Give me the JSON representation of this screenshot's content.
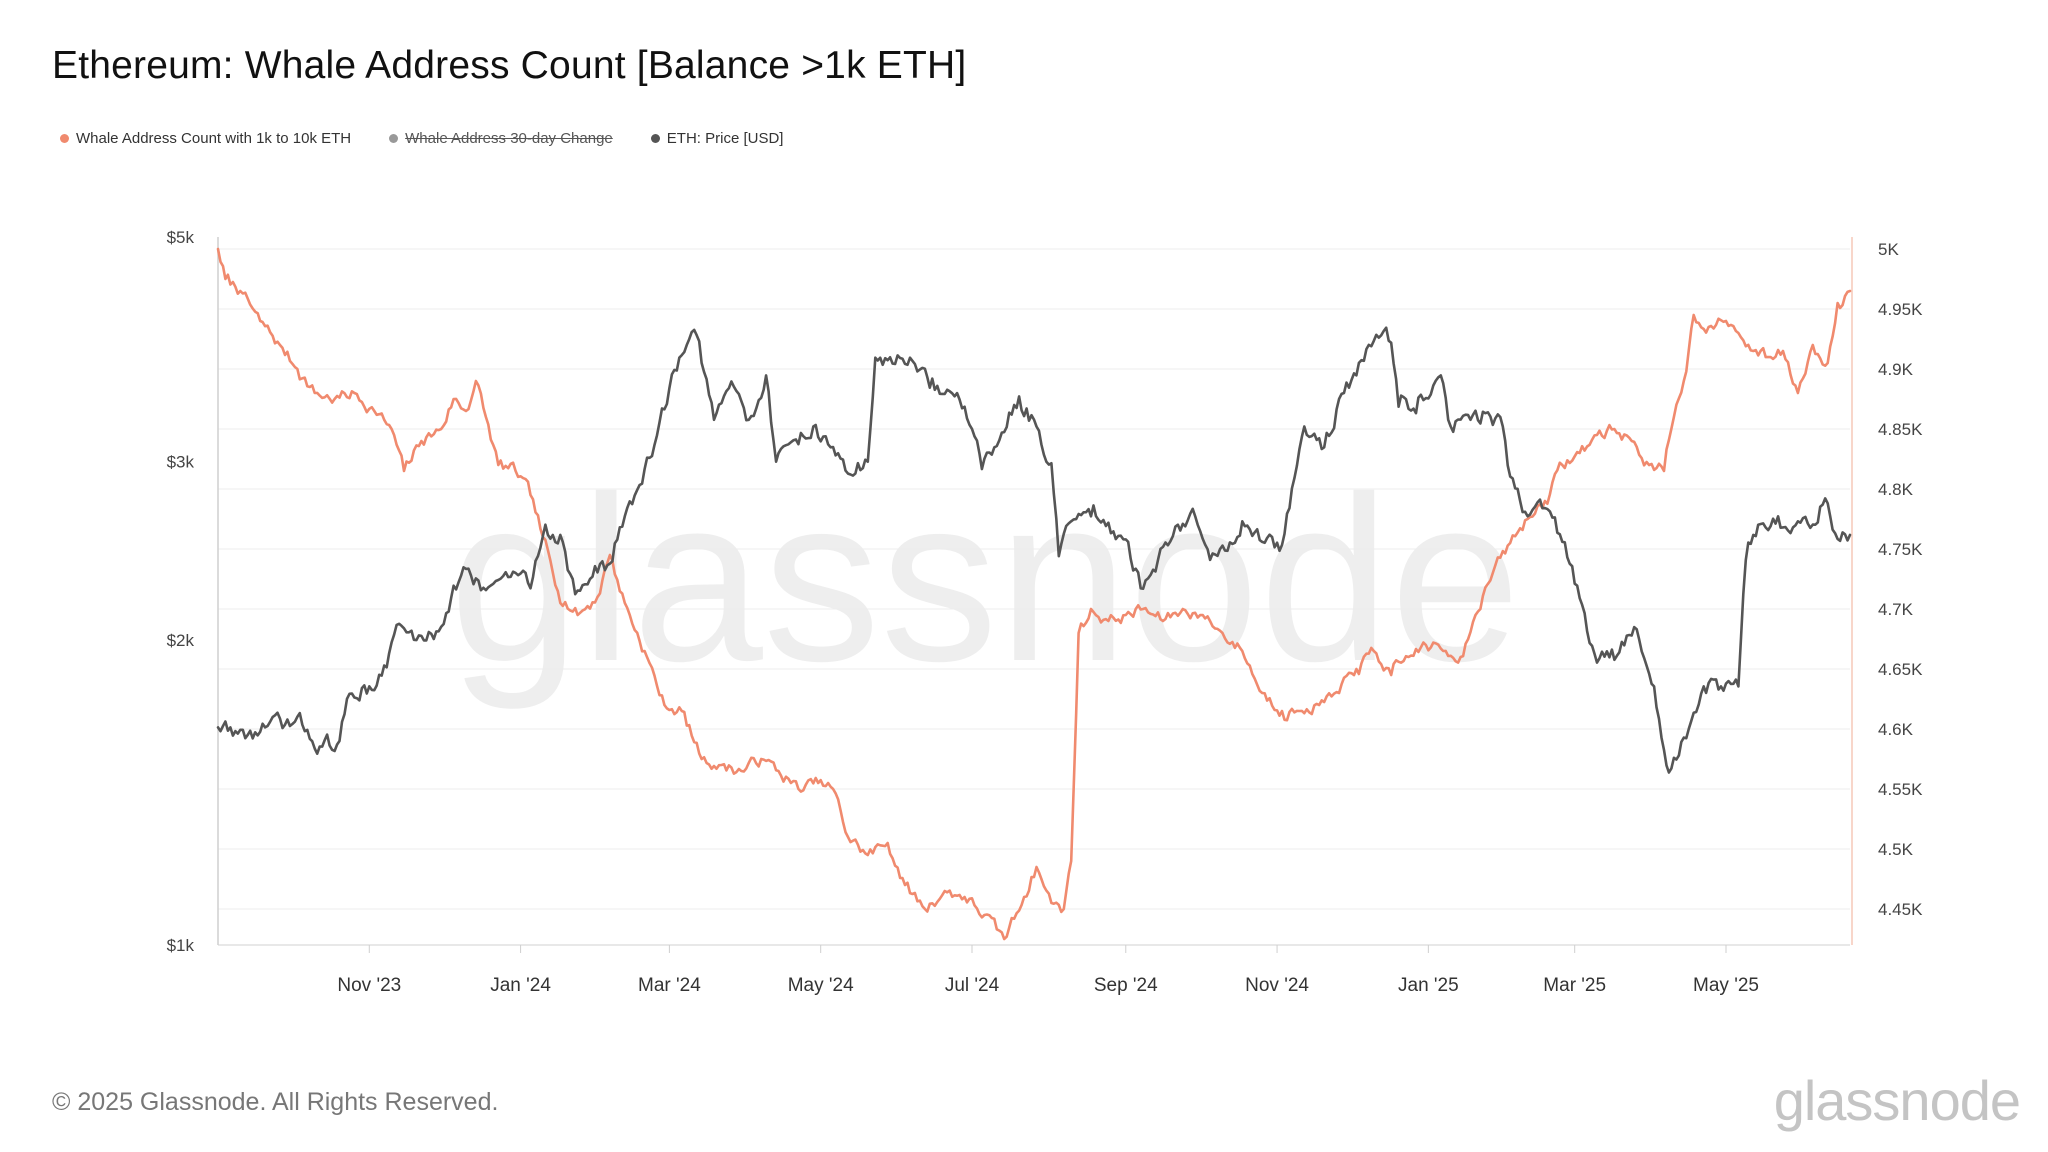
{
  "title": "Ethereum: Whale Address Count [Balance >1k ETH]",
  "legend": [
    {
      "label": "Whale Address Count with 1k to 10k ETH",
      "color": "#f08a6e",
      "disabled": false
    },
    {
      "label": "Whale Address 30-day Change",
      "color": "#999999",
      "disabled": true
    },
    {
      "label": "ETH: Price [USD]",
      "color": "#555555",
      "disabled": false
    }
  ],
  "watermark": "glassnode",
  "footer": {
    "copyright": "© 2025 Glassnode. All Rights Reserved.",
    "logo": "glassnode"
  },
  "chart_data": {
    "type": "line",
    "title": "Ethereum: Whale Address Count [Balance >1k ETH]",
    "x_start": "2023-09-01",
    "x_end": "2025-06-20",
    "x_ticks": [
      {
        "date": "2023-11-01",
        "label": "Nov '23"
      },
      {
        "date": "2024-01-01",
        "label": "Jan '24"
      },
      {
        "date": "2024-03-01",
        "label": "Mar '24"
      },
      {
        "date": "2024-05-01",
        "label": "May '24"
      },
      {
        "date": "2024-07-01",
        "label": "Jul '24"
      },
      {
        "date": "2024-09-01",
        "label": "Sep '24"
      },
      {
        "date": "2024-11-01",
        "label": "Nov '24"
      },
      {
        "date": "2025-01-01",
        "label": "Jan '25"
      },
      {
        "date": "2025-03-01",
        "label": "Mar '25"
      },
      {
        "date": "2025-05-01",
        "label": "May '25"
      }
    ],
    "y_left": {
      "scale": "log",
      "range": [
        1000,
        5000
      ],
      "ticks": [
        {
          "value": 1000,
          "label": "$1k"
        },
        {
          "value": 2000,
          "label": "$2k"
        },
        {
          "value": 3000,
          "label": "$3k"
        },
        {
          "value": 5000,
          "label": "$5k"
        }
      ]
    },
    "y_right": {
      "scale": "linear",
      "range": [
        4420,
        5010
      ],
      "ticks": [
        {
          "value": 4450,
          "label": "4.45K"
        },
        {
          "value": 4500,
          "label": "4.5K"
        },
        {
          "value": 4550,
          "label": "4.55K"
        },
        {
          "value": 4600,
          "label": "4.6K"
        },
        {
          "value": 4650,
          "label": "4.65K"
        },
        {
          "value": 4700,
          "label": "4.7K"
        },
        {
          "value": 4750,
          "label": "4.75K"
        },
        {
          "value": 4800,
          "label": "4.8K"
        },
        {
          "value": 4850,
          "label": "4.85K"
        },
        {
          "value": 4900,
          "label": "4.9K"
        },
        {
          "value": 4950,
          "label": "4.95K"
        },
        {
          "value": 5000,
          "label": "5K"
        }
      ]
    },
    "grid": true,
    "series": [
      {
        "name": "Whale Address Count with 1k to 10k ETH",
        "axis": "right",
        "color": "#f08a6e",
        "points": [
          [
            "2023-09-01",
            5000
          ],
          [
            "2023-09-04",
            4975
          ],
          [
            "2023-09-10",
            4965
          ],
          [
            "2023-09-18",
            4940
          ],
          [
            "2023-09-26",
            4920
          ],
          [
            "2023-10-03",
            4900
          ],
          [
            "2023-10-10",
            4880
          ],
          [
            "2023-10-18",
            4875
          ],
          [
            "2023-10-26",
            4880
          ],
          [
            "2023-11-03",
            4865
          ],
          [
            "2023-11-10",
            4850
          ],
          [
            "2023-11-15",
            4815
          ],
          [
            "2023-11-22",
            4840
          ],
          [
            "2023-11-30",
            4850
          ],
          [
            "2023-12-05",
            4875
          ],
          [
            "2023-12-10",
            4865
          ],
          [
            "2023-12-14",
            4890
          ],
          [
            "2023-12-18",
            4860
          ],
          [
            "2023-12-23",
            4820
          ],
          [
            "2023-12-30",
            4815
          ],
          [
            "2024-01-05",
            4795
          ],
          [
            "2024-01-10",
            4760
          ],
          [
            "2024-01-16",
            4715
          ],
          [
            "2024-01-24",
            4695
          ],
          [
            "2024-02-01",
            4710
          ],
          [
            "2024-02-06",
            4745
          ],
          [
            "2024-02-12",
            4705
          ],
          [
            "2024-02-20",
            4665
          ],
          [
            "2024-02-28",
            4620
          ],
          [
            "2024-03-06",
            4615
          ],
          [
            "2024-03-14",
            4575
          ],
          [
            "2024-03-22",
            4570
          ],
          [
            "2024-03-30",
            4565
          ],
          [
            "2024-04-07",
            4575
          ],
          [
            "2024-04-14",
            4565
          ],
          [
            "2024-04-22",
            4550
          ],
          [
            "2024-04-30",
            4555
          ],
          [
            "2024-05-06",
            4550
          ],
          [
            "2024-05-12",
            4510
          ],
          [
            "2024-05-20",
            4495
          ],
          [
            "2024-05-28",
            4505
          ],
          [
            "2024-06-04",
            4470
          ],
          [
            "2024-06-12",
            4450
          ],
          [
            "2024-06-20",
            4465
          ],
          [
            "2024-06-28",
            4460
          ],
          [
            "2024-07-06",
            4445
          ],
          [
            "2024-07-14",
            4425
          ],
          [
            "2024-07-22",
            4460
          ],
          [
            "2024-07-27",
            4485
          ],
          [
            "2024-08-02",
            4455
          ],
          [
            "2024-08-07",
            4450
          ],
          [
            "2024-08-10",
            4490
          ],
          [
            "2024-08-13",
            4680
          ],
          [
            "2024-08-18",
            4700
          ],
          [
            "2024-08-25",
            4690
          ],
          [
            "2024-09-01",
            4695
          ],
          [
            "2024-09-08",
            4700
          ],
          [
            "2024-09-16",
            4690
          ],
          [
            "2024-09-24",
            4700
          ],
          [
            "2024-10-02",
            4695
          ],
          [
            "2024-10-10",
            4680
          ],
          [
            "2024-10-18",
            4665
          ],
          [
            "2024-10-26",
            4630
          ],
          [
            "2024-11-03",
            4615
          ],
          [
            "2024-11-10",
            4615
          ],
          [
            "2024-11-18",
            4620
          ],
          [
            "2024-11-26",
            4630
          ],
          [
            "2024-12-03",
            4650
          ],
          [
            "2024-12-10",
            4665
          ],
          [
            "2024-12-17",
            4645
          ],
          [
            "2024-12-24",
            4660
          ],
          [
            "2024-12-31",
            4670
          ],
          [
            "2025-01-07",
            4665
          ],
          [
            "2025-01-14",
            4660
          ],
          [
            "2025-01-20",
            4695
          ],
          [
            "2025-01-27",
            4730
          ],
          [
            "2025-02-03",
            4755
          ],
          [
            "2025-02-10",
            4775
          ],
          [
            "2025-02-17",
            4790
          ],
          [
            "2025-02-24",
            4820
          ],
          [
            "2025-03-03",
            4830
          ],
          [
            "2025-03-10",
            4845
          ],
          [
            "2025-03-17",
            4850
          ],
          [
            "2025-03-24",
            4840
          ],
          [
            "2025-03-31",
            4820
          ],
          [
            "2025-04-06",
            4815
          ],
          [
            "2025-04-10",
            4860
          ],
          [
            "2025-04-14",
            4890
          ],
          [
            "2025-04-18",
            4945
          ],
          [
            "2025-04-24",
            4935
          ],
          [
            "2025-05-01",
            4940
          ],
          [
            "2025-05-06",
            4930
          ],
          [
            "2025-05-12",
            4915
          ],
          [
            "2025-05-18",
            4910
          ],
          [
            "2025-05-24",
            4915
          ],
          [
            "2025-05-30",
            4880
          ],
          [
            "2025-06-05",
            4920
          ],
          [
            "2025-06-11",
            4905
          ],
          [
            "2025-06-15",
            4955
          ],
          [
            "2025-06-20",
            4965
          ]
        ]
      },
      {
        "name": "ETH: Price [USD]",
        "axis": "left",
        "color": "#555555",
        "points": [
          [
            "2023-09-01",
            1640
          ],
          [
            "2023-09-06",
            1640
          ],
          [
            "2023-09-12",
            1600
          ],
          [
            "2023-09-20",
            1640
          ],
          [
            "2023-09-28",
            1650
          ],
          [
            "2023-10-05",
            1650
          ],
          [
            "2023-10-12",
            1570
          ],
          [
            "2023-10-20",
            1590
          ],
          [
            "2023-10-24",
            1770
          ],
          [
            "2023-11-01",
            1800
          ],
          [
            "2023-11-08",
            1880
          ],
          [
            "2023-11-12",
            2070
          ],
          [
            "2023-11-20",
            2000
          ],
          [
            "2023-11-28",
            2040
          ],
          [
            "2023-12-04",
            2200
          ],
          [
            "2023-12-09",
            2360
          ],
          [
            "2023-12-16",
            2240
          ],
          [
            "2023-12-24",
            2300
          ],
          [
            "2023-12-30",
            2330
          ],
          [
            "2024-01-05",
            2250
          ],
          [
            "2024-01-11",
            2600
          ],
          [
            "2024-01-17",
            2540
          ],
          [
            "2024-01-23",
            2220
          ],
          [
            "2024-01-30",
            2310
          ],
          [
            "2024-02-06",
            2380
          ],
          [
            "2024-02-12",
            2650
          ],
          [
            "2024-02-20",
            2950
          ],
          [
            "2024-02-28",
            3380
          ],
          [
            "2024-03-05",
            3800
          ],
          [
            "2024-03-12",
            4000
          ],
          [
            "2024-03-19",
            3300
          ],
          [
            "2024-03-26",
            3600
          ],
          [
            "2024-04-02",
            3300
          ],
          [
            "2024-04-09",
            3650
          ],
          [
            "2024-04-13",
            3000
          ],
          [
            "2024-04-20",
            3150
          ],
          [
            "2024-04-28",
            3250
          ],
          [
            "2024-05-05",
            3100
          ],
          [
            "2024-05-12",
            2920
          ],
          [
            "2024-05-20",
            3000
          ],
          [
            "2024-05-23",
            3800
          ],
          [
            "2024-05-30",
            3750
          ],
          [
            "2024-06-06",
            3800
          ],
          [
            "2024-06-14",
            3550
          ],
          [
            "2024-06-20",
            3500
          ],
          [
            "2024-06-28",
            3400
          ],
          [
            "2024-07-05",
            2950
          ],
          [
            "2024-07-12",
            3150
          ],
          [
            "2024-07-20",
            3480
          ],
          [
            "2024-07-27",
            3250
          ],
          [
            "2024-08-02",
            2990
          ],
          [
            "2024-08-05",
            2420
          ],
          [
            "2024-08-10",
            2620
          ],
          [
            "2024-08-18",
            2650
          ],
          [
            "2024-08-26",
            2550
          ],
          [
            "2024-09-02",
            2500
          ],
          [
            "2024-09-07",
            2250
          ],
          [
            "2024-09-14",
            2400
          ],
          [
            "2024-09-22",
            2600
          ],
          [
            "2024-09-29",
            2650
          ],
          [
            "2024-10-05",
            2400
          ],
          [
            "2024-10-12",
            2450
          ],
          [
            "2024-10-18",
            2620
          ],
          [
            "2024-10-26",
            2500
          ],
          [
            "2024-11-02",
            2450
          ],
          [
            "2024-11-06",
            2700
          ],
          [
            "2024-11-12",
            3250
          ],
          [
            "2024-11-20",
            3100
          ],
          [
            "2024-11-27",
            3500
          ],
          [
            "2024-12-03",
            3650
          ],
          [
            "2024-12-09",
            3900
          ],
          [
            "2024-12-16",
            3950
          ],
          [
            "2024-12-20",
            3400
          ],
          [
            "2024-12-27",
            3350
          ],
          [
            "2025-01-06",
            3650
          ],
          [
            "2025-01-10",
            3250
          ],
          [
            "2025-01-18",
            3300
          ],
          [
            "2025-01-24",
            3350
          ],
          [
            "2025-01-31",
            3250
          ],
          [
            "2025-02-03",
            2900
          ],
          [
            "2025-02-10",
            2650
          ],
          [
            "2025-02-17",
            2700
          ],
          [
            "2025-02-24",
            2500
          ],
          [
            "2025-03-03",
            2200
          ],
          [
            "2025-03-10",
            1900
          ],
          [
            "2025-03-18",
            1930
          ],
          [
            "2025-03-26",
            2050
          ],
          [
            "2025-04-02",
            1800
          ],
          [
            "2025-04-08",
            1480
          ],
          [
            "2025-04-15",
            1600
          ],
          [
            "2025-04-22",
            1800
          ],
          [
            "2025-04-29",
            1800
          ],
          [
            "2025-05-06",
            1800
          ],
          [
            "2025-05-09",
            2400
          ],
          [
            "2025-05-14",
            2600
          ],
          [
            "2025-05-22",
            2650
          ],
          [
            "2025-05-30",
            2620
          ],
          [
            "2025-06-06",
            2600
          ],
          [
            "2025-06-10",
            2760
          ],
          [
            "2025-06-14",
            2550
          ],
          [
            "2025-06-20",
            2540
          ]
        ]
      }
    ]
  }
}
